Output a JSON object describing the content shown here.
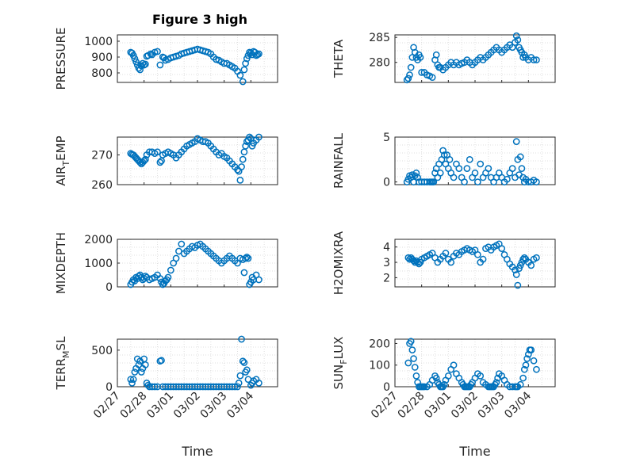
{
  "figure_title": "Figure 3 high",
  "x_axis_label": "Time",
  "x_tick_labels": [
    "02/27",
    "02/28",
    "03/01",
    "03/02",
    "03/03",
    "03/04"
  ],
  "colors": {
    "marker": "#0072BD",
    "grid": "#DFDFDF",
    "axis": "#262626"
  },
  "chart_data": [
    {
      "type": "scatter",
      "title": "Figure 3 high",
      "ylabel": "PRESSURE",
      "xlabel": "",
      "xlim": [
        0,
        6
      ],
      "ylim": [
        740,
        1040
      ],
      "yticks": [
        800,
        900,
        1000
      ],
      "grid": true,
      "x": [
        0.5,
        0.55,
        0.6,
        0.65,
        0.7,
        0.75,
        0.8,
        0.85,
        0.9,
        0.95,
        1.0,
        1.05,
        1.1,
        1.15,
        1.25,
        1.3,
        1.4,
        1.5,
        1.6,
        1.7,
        1.75,
        1.8,
        1.9,
        2.0,
        2.1,
        2.2,
        2.3,
        2.4,
        2.5,
        2.6,
        2.7,
        2.8,
        2.9,
        3.0,
        3.1,
        3.2,
        3.3,
        3.4,
        3.5,
        3.6,
        3.7,
        3.8,
        3.9,
        4.0,
        4.1,
        4.2,
        4.3,
        4.4,
        4.5,
        4.6,
        4.7,
        4.75,
        4.8,
        4.85,
        4.9,
        4.95,
        5.0,
        5.05,
        5.1,
        5.15,
        5.2,
        5.25,
        5.3
      ],
      "y": [
        930,
        925,
        910,
        890,
        870,
        850,
        830,
        820,
        845,
        860,
        850,
        855,
        905,
        910,
        920,
        915,
        930,
        935,
        850,
        900,
        895,
        880,
        885,
        895,
        900,
        905,
        910,
        920,
        925,
        930,
        935,
        940,
        945,
        950,
        945,
        940,
        935,
        930,
        920,
        900,
        885,
        880,
        870,
        860,
        860,
        850,
        840,
        830,
        810,
        785,
        745,
        820,
        860,
        890,
        910,
        930,
        925,
        915,
        935,
        930,
        910,
        915,
        920
      ]
    },
    {
      "type": "scatter",
      "ylabel": "THETA",
      "xlabel": "",
      "xlim": [
        0,
        6
      ],
      "ylim": [
        276,
        285.5
      ],
      "yticks": [
        280,
        285
      ],
      "grid": true,
      "x": [
        0.45,
        0.5,
        0.55,
        0.6,
        0.65,
        0.7,
        0.75,
        0.8,
        0.85,
        0.9,
        0.95,
        1.0,
        1.1,
        1.2,
        1.3,
        1.4,
        1.5,
        1.55,
        1.6,
        1.65,
        1.7,
        1.8,
        1.9,
        2.0,
        2.1,
        2.2,
        2.3,
        2.4,
        2.5,
        2.6,
        2.7,
        2.8,
        2.9,
        3.0,
        3.1,
        3.2,
        3.3,
        3.4,
        3.5,
        3.6,
        3.7,
        3.8,
        3.9,
        4.0,
        4.1,
        4.2,
        4.3,
        4.4,
        4.5,
        4.55,
        4.6,
        4.65,
        4.7,
        4.75,
        4.8,
        4.85,
        4.9,
        5.0,
        5.1,
        5.2,
        5.3
      ],
      "y": [
        276.5,
        276.8,
        277.5,
        279.0,
        281.0,
        283.0,
        282.0,
        281.0,
        280.5,
        281.5,
        281.0,
        278.0,
        278.0,
        277.5,
        277.3,
        277.0,
        280.5,
        281.5,
        279.5,
        279.0,
        279.0,
        278.5,
        279.0,
        279.5,
        280.0,
        279.5,
        280.0,
        279.5,
        279.8,
        280.0,
        280.5,
        280.0,
        279.5,
        280.0,
        280.5,
        281.0,
        280.5,
        281.0,
        281.5,
        282.0,
        282.5,
        283.0,
        282.5,
        282.0,
        282.5,
        283.0,
        283.5,
        283.0,
        284.0,
        285.3,
        284.5,
        283.0,
        282.5,
        282.0,
        281.0,
        281.5,
        281.0,
        280.5,
        281.0,
        280.5,
        280.5
      ]
    },
    {
      "type": "scatter",
      "ylabel": "AIR_TEMP",
      "ylabel_parts": [
        "AIR",
        "T",
        "EMP"
      ],
      "xlabel": "",
      "xlim": [
        0,
        6
      ],
      "ylim": [
        260,
        276
      ],
      "yticks": [
        260,
        270
      ],
      "grid": true,
      "x": [
        0.5,
        0.55,
        0.6,
        0.65,
        0.7,
        0.75,
        0.8,
        0.85,
        0.9,
        0.95,
        1.0,
        1.05,
        1.1,
        1.2,
        1.3,
        1.4,
        1.5,
        1.6,
        1.65,
        1.7,
        1.8,
        1.9,
        2.0,
        2.1,
        2.2,
        2.3,
        2.4,
        2.5,
        2.6,
        2.7,
        2.8,
        2.9,
        3.0,
        3.1,
        3.2,
        3.3,
        3.4,
        3.5,
        3.6,
        3.7,
        3.8,
        3.9,
        4.0,
        4.1,
        4.2,
        4.3,
        4.4,
        4.5,
        4.55,
        4.6,
        4.65,
        4.7,
        4.75,
        4.8,
        4.85,
        4.9,
        4.95,
        5.0,
        5.05,
        5.1,
        5.2,
        5.3
      ],
      "y": [
        270.5,
        270.2,
        270.0,
        269.5,
        269.0,
        268.5,
        268.0,
        267.5,
        267.0,
        267.5,
        268.0,
        268.5,
        270.0,
        271.0,
        271.0,
        270.5,
        271.0,
        267.5,
        268.0,
        270.0,
        270.5,
        271.0,
        270.5,
        270.0,
        269.0,
        270.0,
        271.0,
        272.0,
        273.0,
        273.5,
        274.0,
        274.5,
        275.5,
        275.0,
        274.5,
        274.5,
        274.0,
        273.0,
        272.0,
        271.0,
        270.0,
        270.5,
        269.5,
        269.0,
        268.0,
        267.0,
        266.0,
        265.0,
        264.5,
        261.5,
        266.0,
        268.5,
        271.0,
        273.0,
        274.5,
        275.0,
        276.0,
        275.5,
        273.0,
        274.0,
        275.0,
        276.0
      ]
    },
    {
      "type": "scatter",
      "ylabel": "RAINFALL",
      "xlabel": "",
      "xlim": [
        0,
        6
      ],
      "ylim": [
        -0.3,
        5
      ],
      "yticks": [
        0,
        5
      ],
      "grid": true,
      "x": [
        0.45,
        0.5,
        0.55,
        0.6,
        0.65,
        0.7,
        0.75,
        0.8,
        0.85,
        0.9,
        1.0,
        1.1,
        1.2,
        1.3,
        1.35,
        1.4,
        1.45,
        1.5,
        1.55,
        1.6,
        1.65,
        1.7,
        1.75,
        1.8,
        1.85,
        1.9,
        1.95,
        2.0,
        2.05,
        2.1,
        2.2,
        2.3,
        2.4,
        2.5,
        2.6,
        2.7,
        2.8,
        2.9,
        3.0,
        3.1,
        3.2,
        3.3,
        3.4,
        3.5,
        3.6,
        3.7,
        3.8,
        3.9,
        4.0,
        4.1,
        4.2,
        4.3,
        4.4,
        4.5,
        4.55,
        4.6,
        4.65,
        4.7,
        4.75,
        4.8,
        4.85,
        4.9,
        5.0,
        5.1,
        5.2,
        5.3
      ],
      "y": [
        0,
        0.3,
        0.7,
        0.5,
        0.8,
        0,
        0.7,
        1.0,
        0.5,
        0,
        0,
        0,
        0,
        0,
        0,
        0,
        0,
        1.0,
        1.5,
        0.5,
        2.0,
        1.0,
        2.5,
        3.5,
        3.0,
        2.0,
        3.0,
        1.5,
        2.5,
        1.0,
        0.5,
        2.0,
        1.5,
        0.5,
        0,
        1.5,
        2.5,
        0.5,
        1.0,
        0,
        2.0,
        0.5,
        1.0,
        1.5,
        0.5,
        0,
        0.5,
        1.0,
        0.5,
        0,
        0.3,
        1.0,
        1.5,
        0.5,
        4.5,
        2.5,
        0.8,
        2.8,
        1.5,
        0.5,
        0,
        0.3,
        0,
        0,
        0.2,
        0
      ]
    },
    {
      "type": "scatter",
      "ylabel": "MIXDEPTH",
      "xlabel": "",
      "xlim": [
        0,
        6
      ],
      "ylim": [
        0,
        2000
      ],
      "yticks": [
        0,
        1000,
        2000
      ],
      "grid": true,
      "x": [
        0.5,
        0.55,
        0.6,
        0.65,
        0.7,
        0.75,
        0.8,
        0.85,
        0.9,
        0.95,
        1.0,
        1.05,
        1.1,
        1.2,
        1.3,
        1.4,
        1.5,
        1.6,
        1.65,
        1.7,
        1.75,
        1.8,
        1.85,
        1.9,
        2.0,
        2.1,
        2.2,
        2.3,
        2.4,
        2.5,
        2.6,
        2.7,
        2.8,
        2.9,
        3.0,
        3.1,
        3.2,
        3.3,
        3.4,
        3.5,
        3.6,
        3.7,
        3.8,
        3.9,
        4.0,
        4.1,
        4.2,
        4.3,
        4.4,
        4.5,
        4.6,
        4.7,
        4.75,
        4.8,
        4.85,
        4.9,
        4.95,
        5.0,
        5.05,
        5.1,
        5.2,
        5.3
      ],
      "y": [
        100,
        200,
        300,
        250,
        400,
        350,
        450,
        500,
        400,
        300,
        350,
        450,
        400,
        300,
        350,
        400,
        500,
        350,
        200,
        100,
        150,
        250,
        300,
        400,
        700,
        1000,
        1200,
        1500,
        1800,
        1400,
        1500,
        1600,
        1700,
        1650,
        1750,
        1800,
        1700,
        1600,
        1500,
        1400,
        1300,
        1200,
        1100,
        1000,
        1100,
        1200,
        1300,
        1200,
        1100,
        1000,
        1200,
        1150,
        600,
        1200,
        1250,
        1200,
        100,
        200,
        400,
        300,
        500,
        300
      ]
    },
    {
      "type": "scatter",
      "ylabel": "H2OMIXRA",
      "xlabel": "",
      "xlim": [
        0,
        6
      ],
      "ylim": [
        1.4,
        4.5
      ],
      "yticks": [
        2,
        3,
        4
      ],
      "grid": true,
      "x": [
        0.5,
        0.55,
        0.6,
        0.65,
        0.7,
        0.75,
        0.8,
        0.85,
        0.9,
        0.95,
        1.0,
        1.1,
        1.2,
        1.3,
        1.4,
        1.5,
        1.6,
        1.7,
        1.8,
        1.9,
        2.0,
        2.1,
        2.2,
        2.3,
        2.4,
        2.5,
        2.6,
        2.7,
        2.8,
        2.9,
        3.0,
        3.1,
        3.2,
        3.3,
        3.4,
        3.5,
        3.6,
        3.7,
        3.8,
        3.9,
        4.0,
        4.1,
        4.2,
        4.3,
        4.4,
        4.5,
        4.55,
        4.6,
        4.65,
        4.7,
        4.75,
        4.8,
        4.85,
        4.9,
        5.0,
        5.1,
        5.2,
        5.3
      ],
      "y": [
        3.3,
        3.2,
        3.3,
        3.2,
        3.1,
        3.0,
        3.1,
        3.0,
        2.9,
        3.0,
        3.2,
        3.3,
        3.4,
        3.5,
        3.6,
        3.3,
        3.0,
        3.2,
        3.4,
        3.6,
        3.2,
        3.0,
        3.4,
        3.6,
        3.5,
        3.7,
        3.8,
        3.9,
        3.8,
        3.7,
        3.8,
        3.5,
        3.0,
        3.2,
        3.9,
        4.0,
        3.8,
        4.0,
        4.1,
        4.2,
        3.9,
        3.5,
        3.2,
        2.9,
        2.7,
        2.5,
        2.2,
        1.5,
        2.6,
        2.8,
        3.0,
        3.2,
        3.3,
        3.2,
        3.0,
        2.8,
        3.2,
        3.3
      ]
    },
    {
      "type": "scatter",
      "ylabel": "TERR_MSL",
      "ylabel_parts": [
        "TERR",
        "M",
        "SL"
      ],
      "xlabel": "Time",
      "xlim": [
        0,
        6
      ],
      "ylim": [
        0,
        650
      ],
      "yticks": [
        0,
        500
      ],
      "grid": true,
      "x": [
        0.5,
        0.55,
        0.6,
        0.65,
        0.7,
        0.75,
        0.8,
        0.85,
        0.9,
        0.95,
        1.0,
        1.05,
        1.1,
        1.15,
        1.2,
        1.3,
        1.4,
        1.5,
        1.6,
        1.65,
        1.7,
        1.8,
        1.9,
        2.0,
        2.1,
        2.2,
        2.3,
        2.4,
        2.5,
        2.6,
        2.7,
        2.8,
        2.9,
        3.0,
        3.1,
        3.2,
        3.3,
        3.4,
        3.5,
        3.6,
        3.7,
        3.8,
        3.9,
        4.0,
        4.1,
        4.2,
        4.3,
        4.4,
        4.5,
        4.55,
        4.6,
        4.65,
        4.7,
        4.75,
        4.8,
        4.85,
        4.9,
        5.0,
        5.05,
        5.1,
        5.2,
        5.3
      ],
      "y": [
        100,
        50,
        100,
        200,
        250,
        380,
        300,
        350,
        200,
        250,
        380,
        300,
        50,
        20,
        0,
        0,
        0,
        0,
        350,
        360,
        0,
        0,
        0,
        0,
        0,
        0,
        0,
        0,
        0,
        0,
        0,
        0,
        0,
        0,
        0,
        0,
        0,
        0,
        0,
        0,
        0,
        0,
        0,
        0,
        0,
        0,
        0,
        0,
        0,
        50,
        150,
        650,
        350,
        330,
        200,
        230,
        100,
        20,
        50,
        80,
        100,
        50
      ]
    },
    {
      "type": "scatter",
      "ylabel": "SUN_FLUX",
      "ylabel_parts": [
        "SUN",
        "F",
        "LUX"
      ],
      "xlabel": "Time",
      "xlim": [
        0,
        6
      ],
      "ylim": [
        0,
        220
      ],
      "yticks": [
        0,
        100,
        200
      ],
      "grid": true,
      "x": [
        0.5,
        0.55,
        0.6,
        0.65,
        0.7,
        0.75,
        0.8,
        0.85,
        0.9,
        0.95,
        1.0,
        1.05,
        1.1,
        1.2,
        1.3,
        1.4,
        1.5,
        1.55,
        1.6,
        1.65,
        1.7,
        1.75,
        1.8,
        1.85,
        1.9,
        2.0,
        2.1,
        2.2,
        2.3,
        2.4,
        2.5,
        2.55,
        2.6,
        2.65,
        2.7,
        2.75,
        2.8,
        2.85,
        2.9,
        3.0,
        3.1,
        3.2,
        3.3,
        3.4,
        3.5,
        3.55,
        3.6,
        3.65,
        3.7,
        3.75,
        3.8,
        3.85,
        3.9,
        4.0,
        4.1,
        4.2,
        4.3,
        4.4,
        4.5,
        4.55,
        4.6,
        4.7,
        4.8,
        4.85,
        4.9,
        4.95,
        5.0,
        5.05,
        5.1,
        5.2,
        5.3
      ],
      "y": [
        110,
        200,
        210,
        170,
        130,
        90,
        50,
        20,
        0,
        0,
        0,
        0,
        0,
        0,
        10,
        30,
        50,
        40,
        20,
        10,
        0,
        0,
        0,
        10,
        30,
        50,
        80,
        100,
        60,
        40,
        20,
        10,
        0,
        0,
        0,
        0,
        0,
        10,
        20,
        40,
        60,
        50,
        20,
        10,
        0,
        0,
        0,
        0,
        0,
        10,
        20,
        40,
        60,
        50,
        30,
        10,
        0,
        0,
        0,
        0,
        0,
        10,
        40,
        80,
        100,
        130,
        150,
        170,
        170,
        120,
        80
      ]
    }
  ]
}
